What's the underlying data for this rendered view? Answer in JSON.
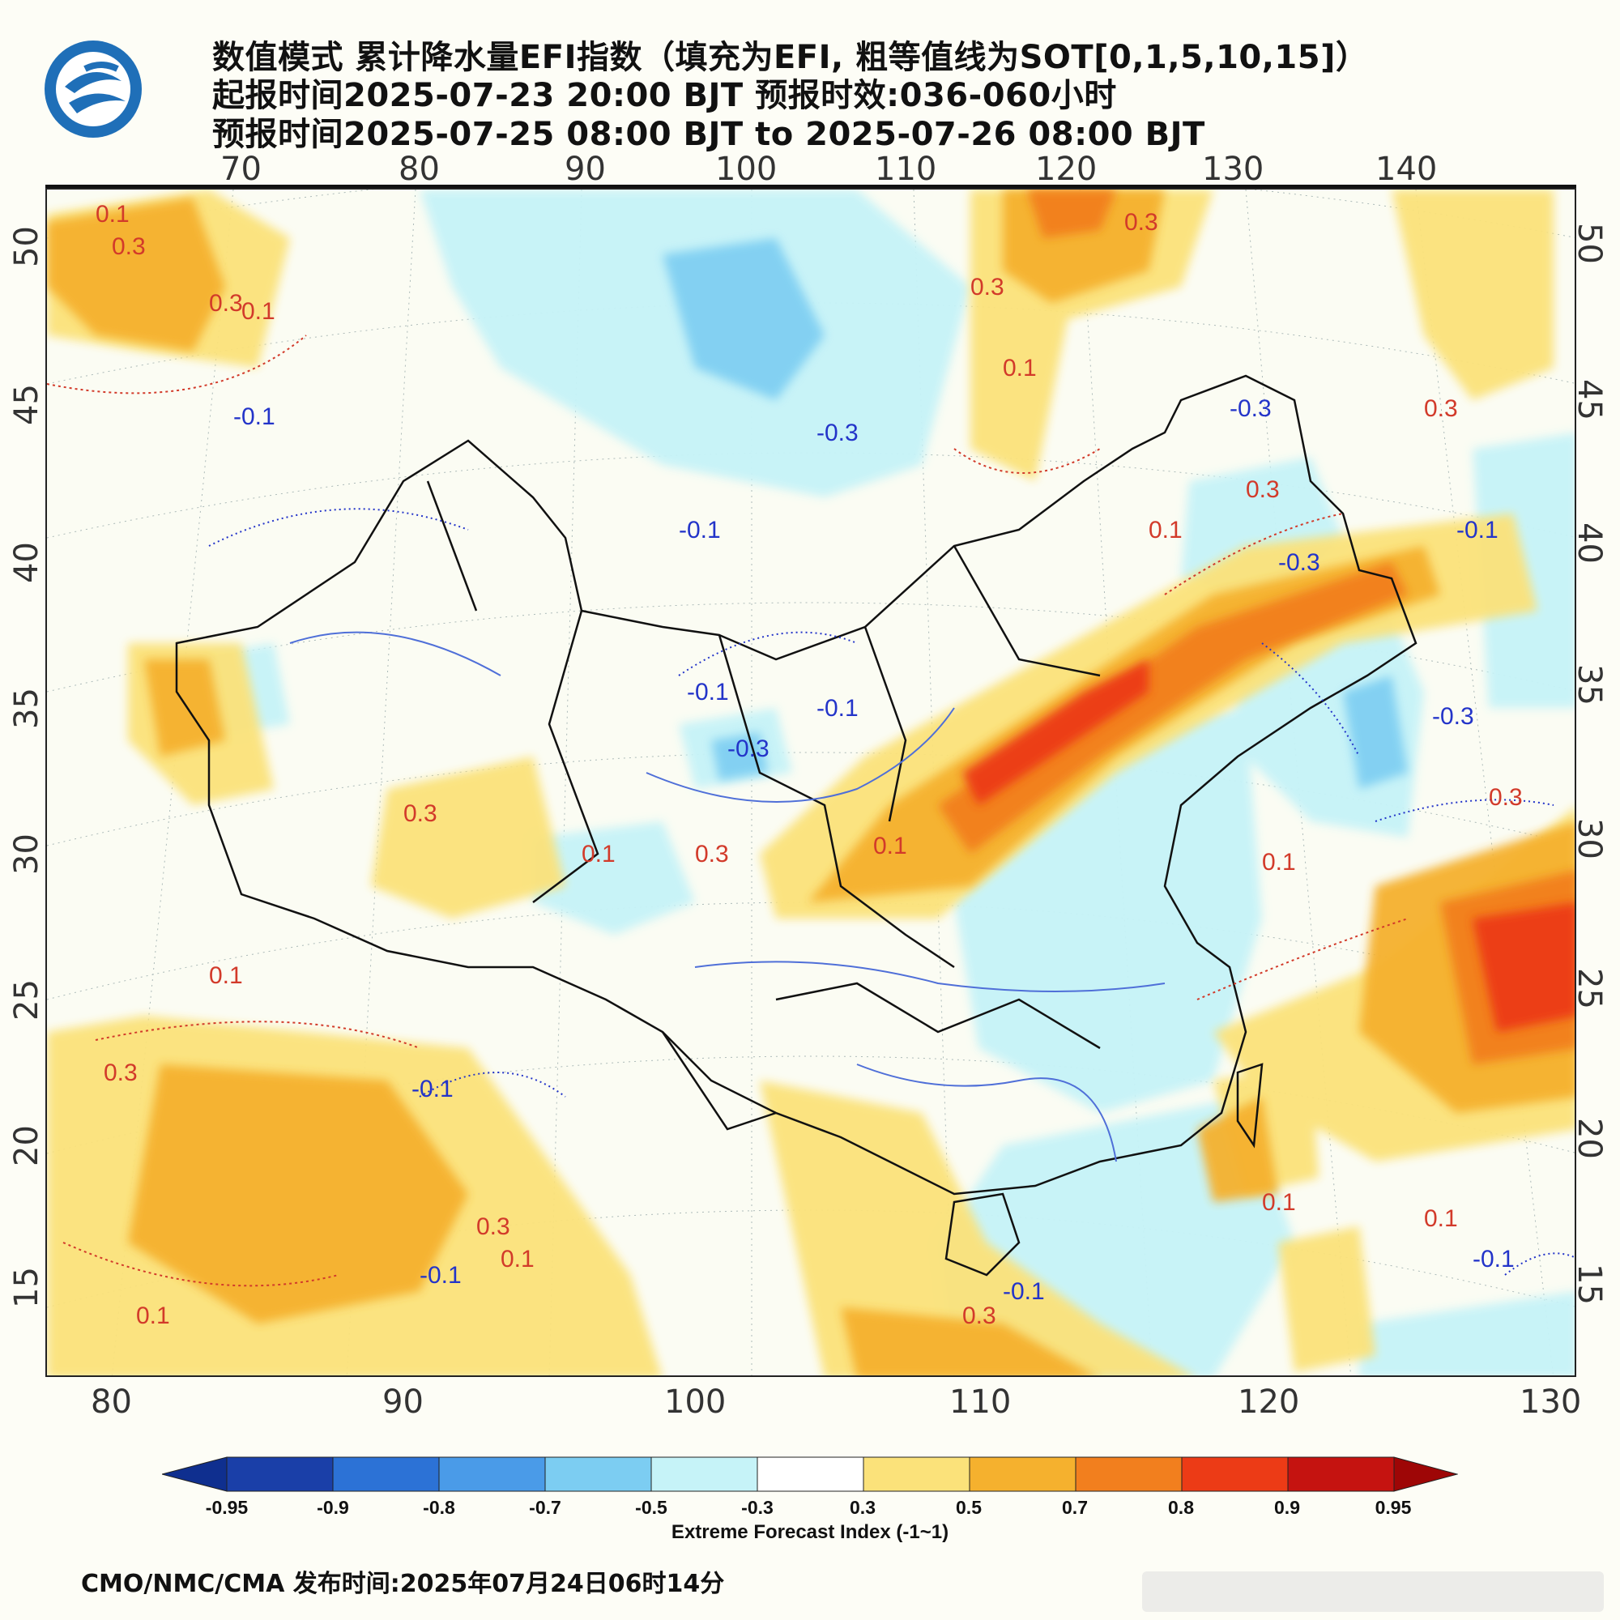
{
  "header": {
    "title_line1": "数值模式 累计降水量EFI指数（填充为EFI, 粗等值线为SOT[0,1,5,10,15]）",
    "title_line2": "起报时间2025-07-23 20:00 BJT 预报时效:036-060小时",
    "title_line3": "预报时间2025-07-25 08:00 BJT to 2025-07-26 08:00 BJT"
  },
  "map": {
    "top_lon_ticks": [
      "70",
      "80",
      "90",
      "100",
      "110",
      "120",
      "130",
      "140"
    ],
    "bottom_lon_ticks": [
      "80",
      "90",
      "100",
      "110",
      "120",
      "130"
    ],
    "lat_ticks_left": [
      "50",
      "45",
      "40",
      "35",
      "30",
      "25",
      "20",
      "15"
    ],
    "lat_ticks_right": [
      "50",
      "45",
      "40",
      "35",
      "30",
      "25",
      "20",
      "15"
    ],
    "contour_labels": [
      {
        "text": "0.1",
        "color": "red"
      },
      {
        "text": "0.3",
        "color": "red"
      },
      {
        "text": "-0.1",
        "color": "blue"
      },
      {
        "text": "-0.3",
        "color": "blue"
      }
    ]
  },
  "colorbar": {
    "colors": [
      "#1a3fa8",
      "#2c72d6",
      "#4a9be8",
      "#7ccdf2",
      "#c6f3f8",
      "#ffffff",
      "#fbe27a",
      "#f5b12e",
      "#f27f1e",
      "#ec3b16",
      "#c51310"
    ],
    "under_color": "#0f2f8f",
    "over_color": "#9e0606",
    "tick_labels": [
      "-0.95",
      "-0.9",
      "-0.8",
      "-0.7",
      "-0.5",
      "-0.3",
      "0.3",
      "0.5",
      "0.7",
      "0.8",
      "0.9",
      "0.95"
    ],
    "title": "Extreme Forecast Index (-1~1)"
  },
  "footer": {
    "text": "CMO/NMC/CMA 发布时间:2025年07月24日06时14分"
  }
}
